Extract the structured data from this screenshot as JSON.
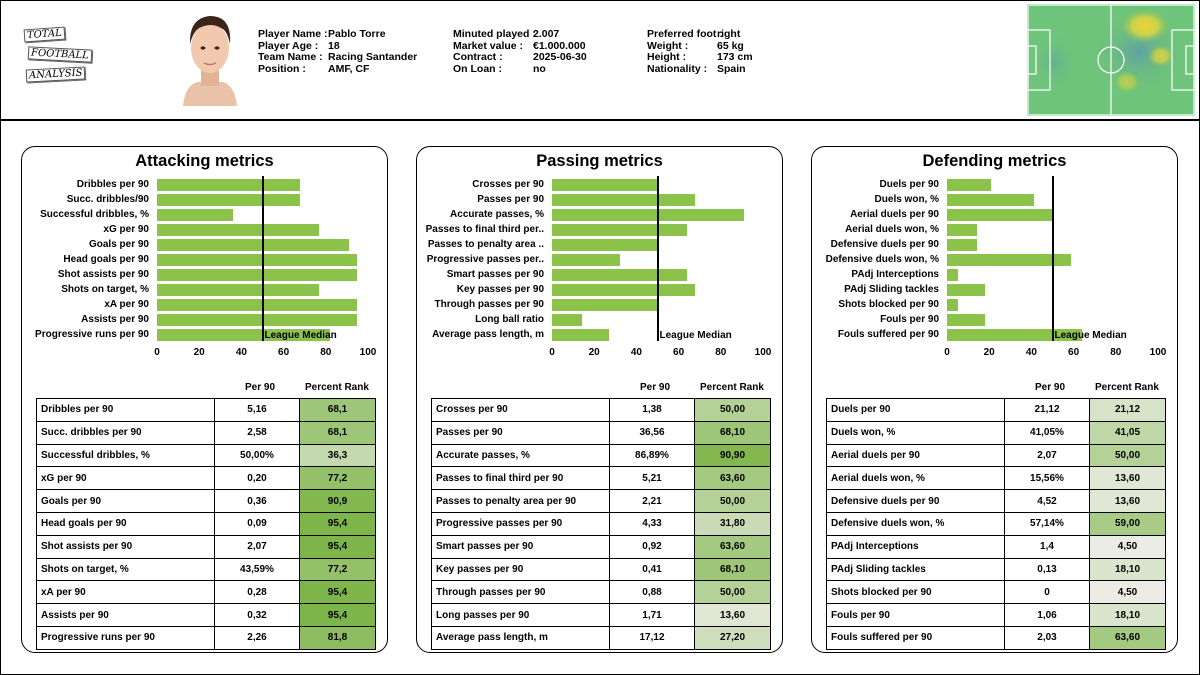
{
  "logo": {
    "line1": "TOTAL",
    "line2": "FOOTBALL",
    "line3": "ANALYSIS"
  },
  "player": {
    "col1": [
      {
        "k": "Player Name",
        "v": "Pablo Torre"
      },
      {
        "k": "Player Age",
        "v": "18"
      },
      {
        "k": "Team Name",
        "v": "Racing Santander"
      },
      {
        "k": "Position",
        "v": "AMF, CF"
      }
    ],
    "col2": [
      {
        "k": "Minuted played",
        "v": "2.007"
      },
      {
        "k": "Market value",
        "v": "€1.000.000"
      },
      {
        "k": "Contract",
        "v": "2025-06-30"
      },
      {
        "k": "On Loan",
        "v": "no"
      }
    ],
    "col3": [
      {
        "k": "Preferred foot",
        "v": "right"
      },
      {
        "k": "Weight",
        "v": "65 kg"
      },
      {
        "k": "Height",
        "v": "173 cm"
      },
      {
        "k": "Nationality",
        "v": "Spain"
      }
    ]
  },
  "colors": {
    "bar": "#8bc34a",
    "pitch": "#6ec47a"
  },
  "chart_data": [
    {
      "type": "bar",
      "orientation": "horizontal",
      "title": "Attacking metrics",
      "categories": [
        "Dribbles per 90",
        "Succ. dribbles/90",
        "Successful dribbles, %",
        "xG per 90",
        "Goals per 90",
        "Head goals per 90",
        "Shot assists per 90",
        "Shots on target, %",
        "xA per 90",
        "Assists per 90",
        "Progressive runs per 90"
      ],
      "values": [
        68,
        68,
        36,
        77,
        91,
        95,
        95,
        77,
        95,
        95,
        82
      ],
      "median": 50,
      "median_label": "League Median",
      "xlim": [
        0,
        100
      ],
      "ticks": [
        "0",
        "20",
        "40",
        "60",
        "80",
        "100"
      ]
    },
    {
      "type": "bar",
      "orientation": "horizontal",
      "title": "Passing metrics",
      "categories": [
        "Crosses per 90",
        "Passes per 90",
        "Accurate passes, %",
        "Passes to final third per..",
        "Passes to penalty area ..",
        "Progressive passes per..",
        "Smart passes per 90",
        "Key passes per 90",
        "Through passes per 90",
        "Long ball ratio",
        "Average pass length, m"
      ],
      "values": [
        50,
        68,
        91,
        64,
        50,
        32,
        64,
        68,
        50,
        14,
        27
      ],
      "median": 50,
      "median_label": "League Median",
      "xlim": [
        0,
        100
      ],
      "ticks": [
        "0",
        "20",
        "40",
        "60",
        "80",
        "100"
      ]
    },
    {
      "type": "bar",
      "orientation": "horizontal",
      "title": "Defending metrics",
      "categories": [
        "Duels per 90",
        "Duels won, %",
        "Aerial duels per 90",
        "Aerial duels won, %",
        "Defensive duels per 90",
        "Defensive duels won, %",
        "PAdj Interceptions",
        "PAdj Sliding tackles",
        "Shots blocked per 90",
        "Fouls per 90",
        "Fouls suffered per 90"
      ],
      "values": [
        21,
        41,
        50,
        14,
        14,
        59,
        5,
        18,
        5,
        18,
        64
      ],
      "median": 50,
      "median_label": "League Median",
      "xlim": [
        0,
        100
      ],
      "ticks": [
        "0",
        "20",
        "40",
        "60",
        "80",
        "100"
      ]
    }
  ],
  "tables": [
    {
      "header_per90": "Per 90",
      "header_rank": "Percent Rank",
      "rows": [
        {
          "name": "Dribbles per 90",
          "per90": "5,16",
          "rank": "68,1"
        },
        {
          "name": "Succ. dribbles per 90",
          "per90": "2,58",
          "rank": "68,1"
        },
        {
          "name": "Successful dribbles, %",
          "per90": "50,00%",
          "rank": "36,3"
        },
        {
          "name": "xG per 90",
          "per90": "0,20",
          "rank": "77,2"
        },
        {
          "name": "Goals per 90",
          "per90": "0,36",
          "rank": "90,9"
        },
        {
          "name": "Head goals per 90",
          "per90": "0,09",
          "rank": "95,4"
        },
        {
          "name": "Shot assists per 90",
          "per90": "2,07",
          "rank": "95,4"
        },
        {
          "name": "Shots on target, %",
          "per90": "43,59%",
          "rank": "77,2"
        },
        {
          "name": "xA per 90",
          "per90": "0,28",
          "rank": "95,4"
        },
        {
          "name": "Assists per 90",
          "per90": "0,32",
          "rank": "95,4"
        },
        {
          "name": "Progressive runs per 90",
          "per90": "2,26",
          "rank": "81,8"
        }
      ]
    },
    {
      "header_per90": "Per 90",
      "header_rank": "Percent Rank",
      "rows": [
        {
          "name": "Crosses per 90",
          "per90": "1,38",
          "rank": "50,00"
        },
        {
          "name": "Passes per 90",
          "per90": "36,56",
          "rank": "68,10"
        },
        {
          "name": "Accurate passes, %",
          "per90": "86,89%",
          "rank": "90,90"
        },
        {
          "name": "Passes to final third per 90",
          "per90": "5,21",
          "rank": "63,60"
        },
        {
          "name": "Passes to penalty area per 90",
          "per90": "2,21",
          "rank": "50,00"
        },
        {
          "name": "Progressive passes per 90",
          "per90": "4,33",
          "rank": "31,80"
        },
        {
          "name": "Smart passes per 90",
          "per90": "0,92",
          "rank": "63,60"
        },
        {
          "name": "Key passes per 90",
          "per90": "0,41",
          "rank": "68,10"
        },
        {
          "name": "Through passes per 90",
          "per90": "0,88",
          "rank": "50,00"
        },
        {
          "name": "Long passes per 90",
          "per90": "1,71",
          "rank": "13,60"
        },
        {
          "name": "Average pass length, m",
          "per90": "17,12",
          "rank": "27,20"
        }
      ]
    },
    {
      "header_per90": "Per 90",
      "header_rank": "Percent Rank",
      "rows": [
        {
          "name": "Duels per 90",
          "per90": "21,12",
          "rank": "21,12"
        },
        {
          "name": "Duels won, %",
          "per90": "41,05%",
          "rank": "41,05"
        },
        {
          "name": "Aerial duels per 90",
          "per90": "2,07",
          "rank": "50,00"
        },
        {
          "name": "Aerial duels won, %",
          "per90": "15,56%",
          "rank": "13,60"
        },
        {
          "name": "Defensive duels per 90",
          "per90": "4,52",
          "rank": "13,60"
        },
        {
          "name": "Defensive duels won, %",
          "per90": "57,14%",
          "rank": "59,00"
        },
        {
          "name": "PAdj Interceptions",
          "per90": "1,4",
          "rank": "4,50"
        },
        {
          "name": "PAdj Sliding tackles",
          "per90": "0,13",
          "rank": "18,10"
        },
        {
          "name": "Shots blocked per 90",
          "per90": "0",
          "rank": "4,50"
        },
        {
          "name": "Fouls per 90",
          "per90": "1,06",
          "rank": "18,10"
        },
        {
          "name": "Fouls suffered per 90",
          "per90": "2,03",
          "rank": "63,60"
        }
      ]
    }
  ]
}
